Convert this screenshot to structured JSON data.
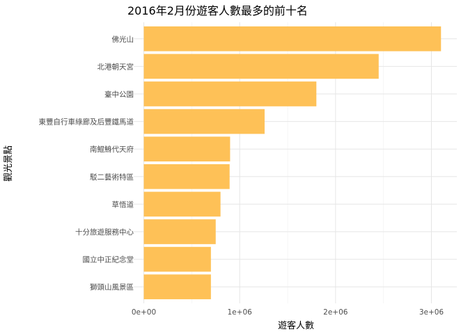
{
  "chart_data": {
    "type": "bar",
    "orientation": "horizontal",
    "title": "2016年2月份遊客人數最多的前十名",
    "xlabel": "遊客人數",
    "ylabel": "觀光景點",
    "categories": [
      "佛光山",
      "北港朝天宮",
      "臺中公園",
      "東豐自行車綠廊及后豐鐵馬道",
      "南鯤鯓代天府",
      "駁二藝術特區",
      "草悟道",
      "十分旅遊服務中心",
      "國立中正紀念堂",
      "獅頭山風景區"
    ],
    "values": [
      3100000,
      2450000,
      1800000,
      1260000,
      900000,
      895000,
      800000,
      750000,
      700000,
      700000
    ],
    "xlim": [
      0,
      3200000
    ],
    "x_ticks": [
      0,
      1000000,
      2000000,
      3000000
    ],
    "x_tick_labels": [
      "0e+00",
      "1e+06",
      "2e+06",
      "3e+06"
    ],
    "bar_color": "#FEC157",
    "grid": true,
    "legend": "none"
  }
}
